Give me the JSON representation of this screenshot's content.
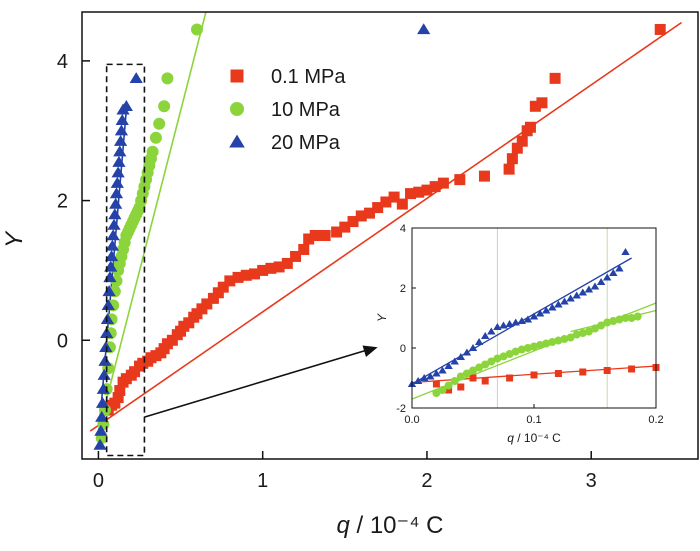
{
  "chart_data": [
    {
      "type": "scatter",
      "title": "",
      "xlabel_var": "q",
      "xlabel_unit": " / 10⁻⁴ C",
      "ylabel": "Y",
      "xlim": [
        -0.1,
        3.65
      ],
      "ylim": [
        -1.7,
        4.7
      ],
      "xticks": [
        0,
        1,
        2,
        3
      ],
      "xtick_labels": [
        "0",
        "1",
        "2",
        "3"
      ],
      "yticks": [
        0,
        2,
        4
      ],
      "ytick_labels": [
        "0",
        "2",
        "4"
      ],
      "grid": false,
      "legend": {
        "placement": "top-center",
        "entries": [
          "0.1 MPa",
          "10 MPa",
          "20 MPa"
        ]
      },
      "series": [
        {
          "name": "0.1 MPa",
          "marker": "square",
          "color": "#e8391d",
          "points": [
            [
              0.06,
              -1.0
            ],
            [
              0.08,
              -0.93
            ],
            [
              0.1,
              -0.9
            ],
            [
              0.12,
              -0.82
            ],
            [
              0.13,
              -0.72
            ],
            [
              0.15,
              -0.6
            ],
            [
              0.17,
              -0.55
            ],
            [
              0.2,
              -0.5
            ],
            [
              0.22,
              -0.45
            ],
            [
              0.25,
              -0.37
            ],
            [
              0.27,
              -0.33
            ],
            [
              0.3,
              -0.3
            ],
            [
              0.32,
              -0.25
            ],
            [
              0.35,
              -0.22
            ],
            [
              0.38,
              -0.18
            ],
            [
              0.4,
              -0.12
            ],
            [
              0.42,
              -0.05
            ],
            [
              0.45,
              0.0
            ],
            [
              0.48,
              0.08
            ],
            [
              0.5,
              0.13
            ],
            [
              0.52,
              0.2
            ],
            [
              0.55,
              0.25
            ],
            [
              0.58,
              0.33
            ],
            [
              0.6,
              0.38
            ],
            [
              0.63,
              0.45
            ],
            [
              0.66,
              0.52
            ],
            [
              0.7,
              0.6
            ],
            [
              0.73,
              0.68
            ],
            [
              0.76,
              0.76
            ],
            [
              0.8,
              0.85
            ],
            [
              0.85,
              0.9
            ],
            [
              0.9,
              0.93
            ],
            [
              0.95,
              0.95
            ],
            [
              1.0,
              1.0
            ],
            [
              1.05,
              1.03
            ],
            [
              1.1,
              1.05
            ],
            [
              1.15,
              1.1
            ],
            [
              1.2,
              1.2
            ],
            [
              1.25,
              1.3
            ],
            [
              1.28,
              1.45
            ],
            [
              1.32,
              1.5
            ],
            [
              1.38,
              1.5
            ],
            [
              1.45,
              1.55
            ],
            [
              1.5,
              1.62
            ],
            [
              1.55,
              1.7
            ],
            [
              1.6,
              1.78
            ],
            [
              1.65,
              1.82
            ],
            [
              1.7,
              1.9
            ],
            [
              1.75,
              1.98
            ],
            [
              1.8,
              2.05
            ],
            [
              1.85,
              1.95
            ],
            [
              1.9,
              2.1
            ],
            [
              1.95,
              2.12
            ],
            [
              2.0,
              2.15
            ],
            [
              2.05,
              2.2
            ],
            [
              2.1,
              2.25
            ],
            [
              2.2,
              2.3
            ],
            [
              2.35,
              2.35
            ],
            [
              2.5,
              2.45
            ],
            [
              2.52,
              2.6
            ],
            [
              2.55,
              2.75
            ],
            [
              2.58,
              2.85
            ],
            [
              2.61,
              3.0
            ],
            [
              2.63,
              3.05
            ],
            [
              2.66,
              3.35
            ],
            [
              2.7,
              3.4
            ],
            [
              2.78,
              3.75
            ],
            [
              3.42,
              4.45
            ]
          ],
          "fit": [
            [
              -0.05,
              -1.3
            ],
            [
              3.55,
              4.55
            ]
          ]
        },
        {
          "name": "10 MPa",
          "marker": "circle",
          "color": "#8cd43c",
          "points": [
            [
              0.02,
              -1.4
            ],
            [
              0.03,
              -1.2
            ],
            [
              0.04,
              -1.0
            ],
            [
              0.05,
              -0.7
            ],
            [
              0.06,
              -0.4
            ],
            [
              0.07,
              -0.1
            ],
            [
              0.075,
              0.1
            ],
            [
              0.08,
              0.3
            ],
            [
              0.09,
              0.5
            ],
            [
              0.1,
              0.7
            ],
            [
              0.11,
              0.85
            ],
            [
              0.12,
              1.0
            ],
            [
              0.13,
              1.1
            ],
            [
              0.14,
              1.2
            ],
            [
              0.15,
              1.3
            ],
            [
              0.16,
              1.4
            ],
            [
              0.17,
              1.5
            ],
            [
              0.18,
              1.55
            ],
            [
              0.19,
              1.6
            ],
            [
              0.2,
              1.65
            ],
            [
              0.21,
              1.7
            ],
            [
              0.22,
              1.75
            ],
            [
              0.23,
              1.8
            ],
            [
              0.24,
              1.85
            ],
            [
              0.25,
              1.9
            ],
            [
              0.26,
              2.0
            ],
            [
              0.27,
              2.1
            ],
            [
              0.28,
              2.2
            ],
            [
              0.29,
              2.3
            ],
            [
              0.3,
              2.4
            ],
            [
              0.31,
              2.5
            ],
            [
              0.32,
              2.6
            ],
            [
              0.33,
              2.7
            ],
            [
              0.35,
              2.9
            ],
            [
              0.37,
              3.1
            ],
            [
              0.4,
              3.35
            ],
            [
              0.42,
              3.75
            ],
            [
              0.6,
              4.45
            ]
          ],
          "fit": [
            [
              0.0,
              -1.3
            ],
            [
              0.66,
              4.75
            ]
          ]
        },
        {
          "name": "20 MPa",
          "marker": "triangle",
          "color": "#2442a8",
          "points": [
            [
              0.01,
              -1.5
            ],
            [
              0.015,
              -1.3
            ],
            [
              0.02,
              -1.1
            ],
            [
              0.025,
              -0.9
            ],
            [
              0.03,
              -0.7
            ],
            [
              0.035,
              -0.5
            ],
            [
              0.04,
              -0.3
            ],
            [
              0.045,
              -0.1
            ],
            [
              0.05,
              0.1
            ],
            [
              0.055,
              0.3
            ],
            [
              0.06,
              0.5
            ],
            [
              0.065,
              0.7
            ],
            [
              0.07,
              0.9
            ],
            [
              0.075,
              1.05
            ],
            [
              0.08,
              1.2
            ],
            [
              0.085,
              1.35
            ],
            [
              0.09,
              1.5
            ],
            [
              0.095,
              1.65
            ],
            [
              0.1,
              1.8
            ],
            [
              0.105,
              1.95
            ],
            [
              0.11,
              2.1
            ],
            [
              0.115,
              2.25
            ],
            [
              0.12,
              2.4
            ],
            [
              0.125,
              2.55
            ],
            [
              0.13,
              2.7
            ],
            [
              0.135,
              2.85
            ],
            [
              0.14,
              3.0
            ],
            [
              0.145,
              3.15
            ],
            [
              0.15,
              3.3
            ],
            [
              0.17,
              3.35
            ],
            [
              0.23,
              3.75
            ],
            [
              1.98,
              4.45
            ]
          ],
          "fit": [
            [
              0.0,
              -1.4
            ],
            [
              0.17,
              3.3
            ]
          ]
        }
      ],
      "annotation": {
        "dashed_box": {
          "x0": 0.05,
          "x1": 0.28,
          "y0": -1.65,
          "y1": 3.95
        },
        "arrow": {
          "from": [
            0.28,
            -1.1
          ],
          "to": [
            1.7,
            -0.1
          ]
        }
      }
    },
    {
      "type": "scatter",
      "title": "",
      "role": "inset",
      "xlabel_var": "q",
      "xlabel_unit": " / 10⁻⁴ C",
      "ylabel": "Y",
      "xlim": [
        0.0,
        0.2
      ],
      "ylim": [
        -2.0,
        4.0
      ],
      "xticks": [
        0.0,
        0.1,
        0.2
      ],
      "xtick_labels": [
        "0.0",
        "0.1",
        "0.2"
      ],
      "yticks": [
        -2,
        0,
        2,
        4
      ],
      "ytick_labels": [
        "-2",
        "0",
        "2",
        "4"
      ],
      "grid": false,
      "vlines": [
        0.07,
        0.16
      ],
      "series": [
        {
          "name": "0.1 MPa",
          "marker": "square",
          "color": "#e8391d",
          "points": [
            [
              0.02,
              -1.2
            ],
            [
              0.03,
              -1.4
            ],
            [
              0.04,
              -1.3
            ],
            [
              0.05,
              -1.0
            ],
            [
              0.06,
              -1.1
            ],
            [
              0.08,
              -1.0
            ],
            [
              0.1,
              -0.9
            ],
            [
              0.12,
              -0.85
            ],
            [
              0.14,
              -0.8
            ],
            [
              0.16,
              -0.75
            ],
            [
              0.18,
              -0.7
            ],
            [
              0.2,
              -0.65
            ]
          ],
          "fit": [
            [
              0.0,
              -1.15
            ],
            [
              0.2,
              -0.6
            ]
          ]
        },
        {
          "name": "10 MPa",
          "marker": "circle",
          "color": "#8cd43c",
          "points": [
            [
              0.02,
              -1.5
            ],
            [
              0.025,
              -1.4
            ],
            [
              0.03,
              -1.25
            ],
            [
              0.035,
              -1.1
            ],
            [
              0.04,
              -0.95
            ],
            [
              0.045,
              -0.85
            ],
            [
              0.05,
              -0.75
            ],
            [
              0.055,
              -0.65
            ],
            [
              0.06,
              -0.55
            ],
            [
              0.065,
              -0.45
            ],
            [
              0.07,
              -0.35
            ],
            [
              0.075,
              -0.28
            ],
            [
              0.08,
              -0.2
            ],
            [
              0.085,
              -0.12
            ],
            [
              0.09,
              -0.05
            ],
            [
              0.095,
              0.0
            ],
            [
              0.1,
              0.05
            ],
            [
              0.105,
              0.1
            ],
            [
              0.11,
              0.15
            ],
            [
              0.115,
              0.2
            ],
            [
              0.12,
              0.25
            ],
            [
              0.125,
              0.3
            ],
            [
              0.13,
              0.35
            ],
            [
              0.135,
              0.45
            ],
            [
              0.14,
              0.5
            ],
            [
              0.145,
              0.55
            ],
            [
              0.15,
              0.65
            ],
            [
              0.155,
              0.75
            ],
            [
              0.16,
              0.85
            ],
            [
              0.165,
              0.9
            ],
            [
              0.17,
              0.95
            ],
            [
              0.175,
              1.0
            ],
            [
              0.18,
              1.0
            ],
            [
              0.185,
              1.05
            ]
          ],
          "fit": [
            [
              0.0,
              -1.7
            ],
            [
              0.2,
              1.5
            ]
          ],
          "fit2": [
            [
              0.13,
              0.55
            ],
            [
              0.2,
              1.25
            ]
          ]
        },
        {
          "name": "20 MPa",
          "marker": "triangle",
          "color": "#2442a8",
          "points": [
            [
              0.0,
              -1.2
            ],
            [
              0.005,
              -1.1
            ],
            [
              0.01,
              -1.0
            ],
            [
              0.015,
              -0.95
            ],
            [
              0.02,
              -0.85
            ],
            [
              0.025,
              -0.75
            ],
            [
              0.03,
              -0.6
            ],
            [
              0.035,
              -0.45
            ],
            [
              0.04,
              -0.3
            ],
            [
              0.045,
              -0.15
            ],
            [
              0.05,
              0.0
            ],
            [
              0.055,
              0.2
            ],
            [
              0.06,
              0.4
            ],
            [
              0.065,
              0.55
            ],
            [
              0.07,
              0.7
            ],
            [
              0.075,
              0.75
            ],
            [
              0.08,
              0.8
            ],
            [
              0.085,
              0.85
            ],
            [
              0.09,
              0.9
            ],
            [
              0.095,
              0.95
            ],
            [
              0.1,
              1.05
            ],
            [
              0.105,
              1.15
            ],
            [
              0.11,
              1.25
            ],
            [
              0.115,
              1.35
            ],
            [
              0.12,
              1.45
            ],
            [
              0.125,
              1.55
            ],
            [
              0.13,
              1.65
            ],
            [
              0.135,
              1.75
            ],
            [
              0.14,
              1.85
            ],
            [
              0.145,
              1.95
            ],
            [
              0.15,
              2.05
            ],
            [
              0.155,
              2.2
            ],
            [
              0.16,
              2.35
            ],
            [
              0.165,
              2.5
            ],
            [
              0.17,
              2.65
            ],
            [
              0.175,
              3.2
            ]
          ],
          "fit": [
            [
              0.0,
              -1.2
            ],
            [
              0.18,
              3.0
            ]
          ]
        }
      ]
    }
  ]
}
